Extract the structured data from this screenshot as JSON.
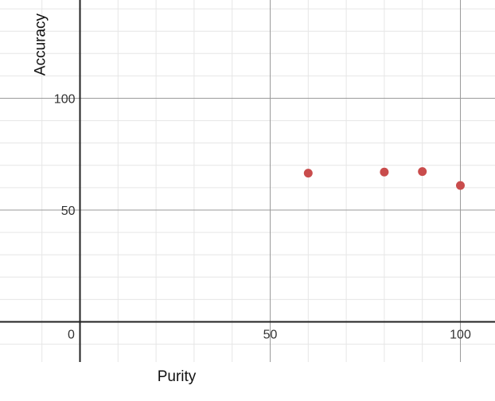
{
  "chart_data": {
    "type": "scatter",
    "xlabel": "Purity",
    "ylabel": "Accuracy",
    "xlim": [
      -18,
      105
    ],
    "ylim": [
      -18,
      142
    ],
    "x_ticks": [
      0,
      50,
      100
    ],
    "y_ticks": [
      50,
      100
    ],
    "x_tick_labels": [
      "0",
      "50",
      "100"
    ],
    "y_tick_labels": [
      "50",
      "100"
    ],
    "grid": true,
    "marker_color": "#c94c4c",
    "points": [
      {
        "x": 60,
        "y": 66.5
      },
      {
        "x": 80,
        "y": 67
      },
      {
        "x": 90,
        "y": 67.2
      },
      {
        "x": 100,
        "y": 61
      }
    ]
  }
}
